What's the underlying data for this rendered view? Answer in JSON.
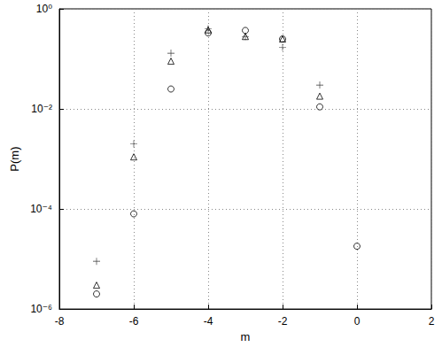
{
  "chart_data": {
    "type": "scatter",
    "x_label": "m",
    "y_label": "P(m)",
    "log": "y",
    "grid": true,
    "xlim": [
      -8,
      2
    ],
    "xticks": [
      -8,
      -6,
      -4,
      -2,
      0,
      2
    ],
    "ylim": [
      1e-06,
      1
    ],
    "yticks": [
      {
        "value": 1e-06,
        "label": "10⁻⁶"
      },
      {
        "value": 0.0001,
        "label": "10⁻⁴"
      },
      {
        "value": 0.01,
        "label": "10⁻²"
      },
      {
        "value": 1,
        "label": "10⁰"
      }
    ],
    "series": [
      {
        "marker": "plus",
        "color": "#000000",
        "x": [
          -7,
          -6,
          -5,
          -4,
          -3,
          -2,
          -1
        ],
        "values": [
          9e-06,
          0.002,
          0.13,
          0.4,
          0.28,
          0.17,
          0.03
        ]
      },
      {
        "marker": "triangle",
        "color": "#000000",
        "x": [
          -7,
          -6,
          -5,
          -4,
          -3,
          -2,
          -1
        ],
        "values": [
          3e-06,
          0.0011,
          0.09,
          0.38,
          0.28,
          0.25,
          0.018
        ]
      },
      {
        "marker": "circle",
        "color": "#000000",
        "x": [
          -7,
          -6,
          -5,
          -4,
          -3,
          -2,
          -1,
          0
        ],
        "values": [
          2e-06,
          8e-05,
          0.025,
          0.33,
          0.37,
          0.25,
          0.011,
          1.8e-05
        ]
      }
    ]
  }
}
